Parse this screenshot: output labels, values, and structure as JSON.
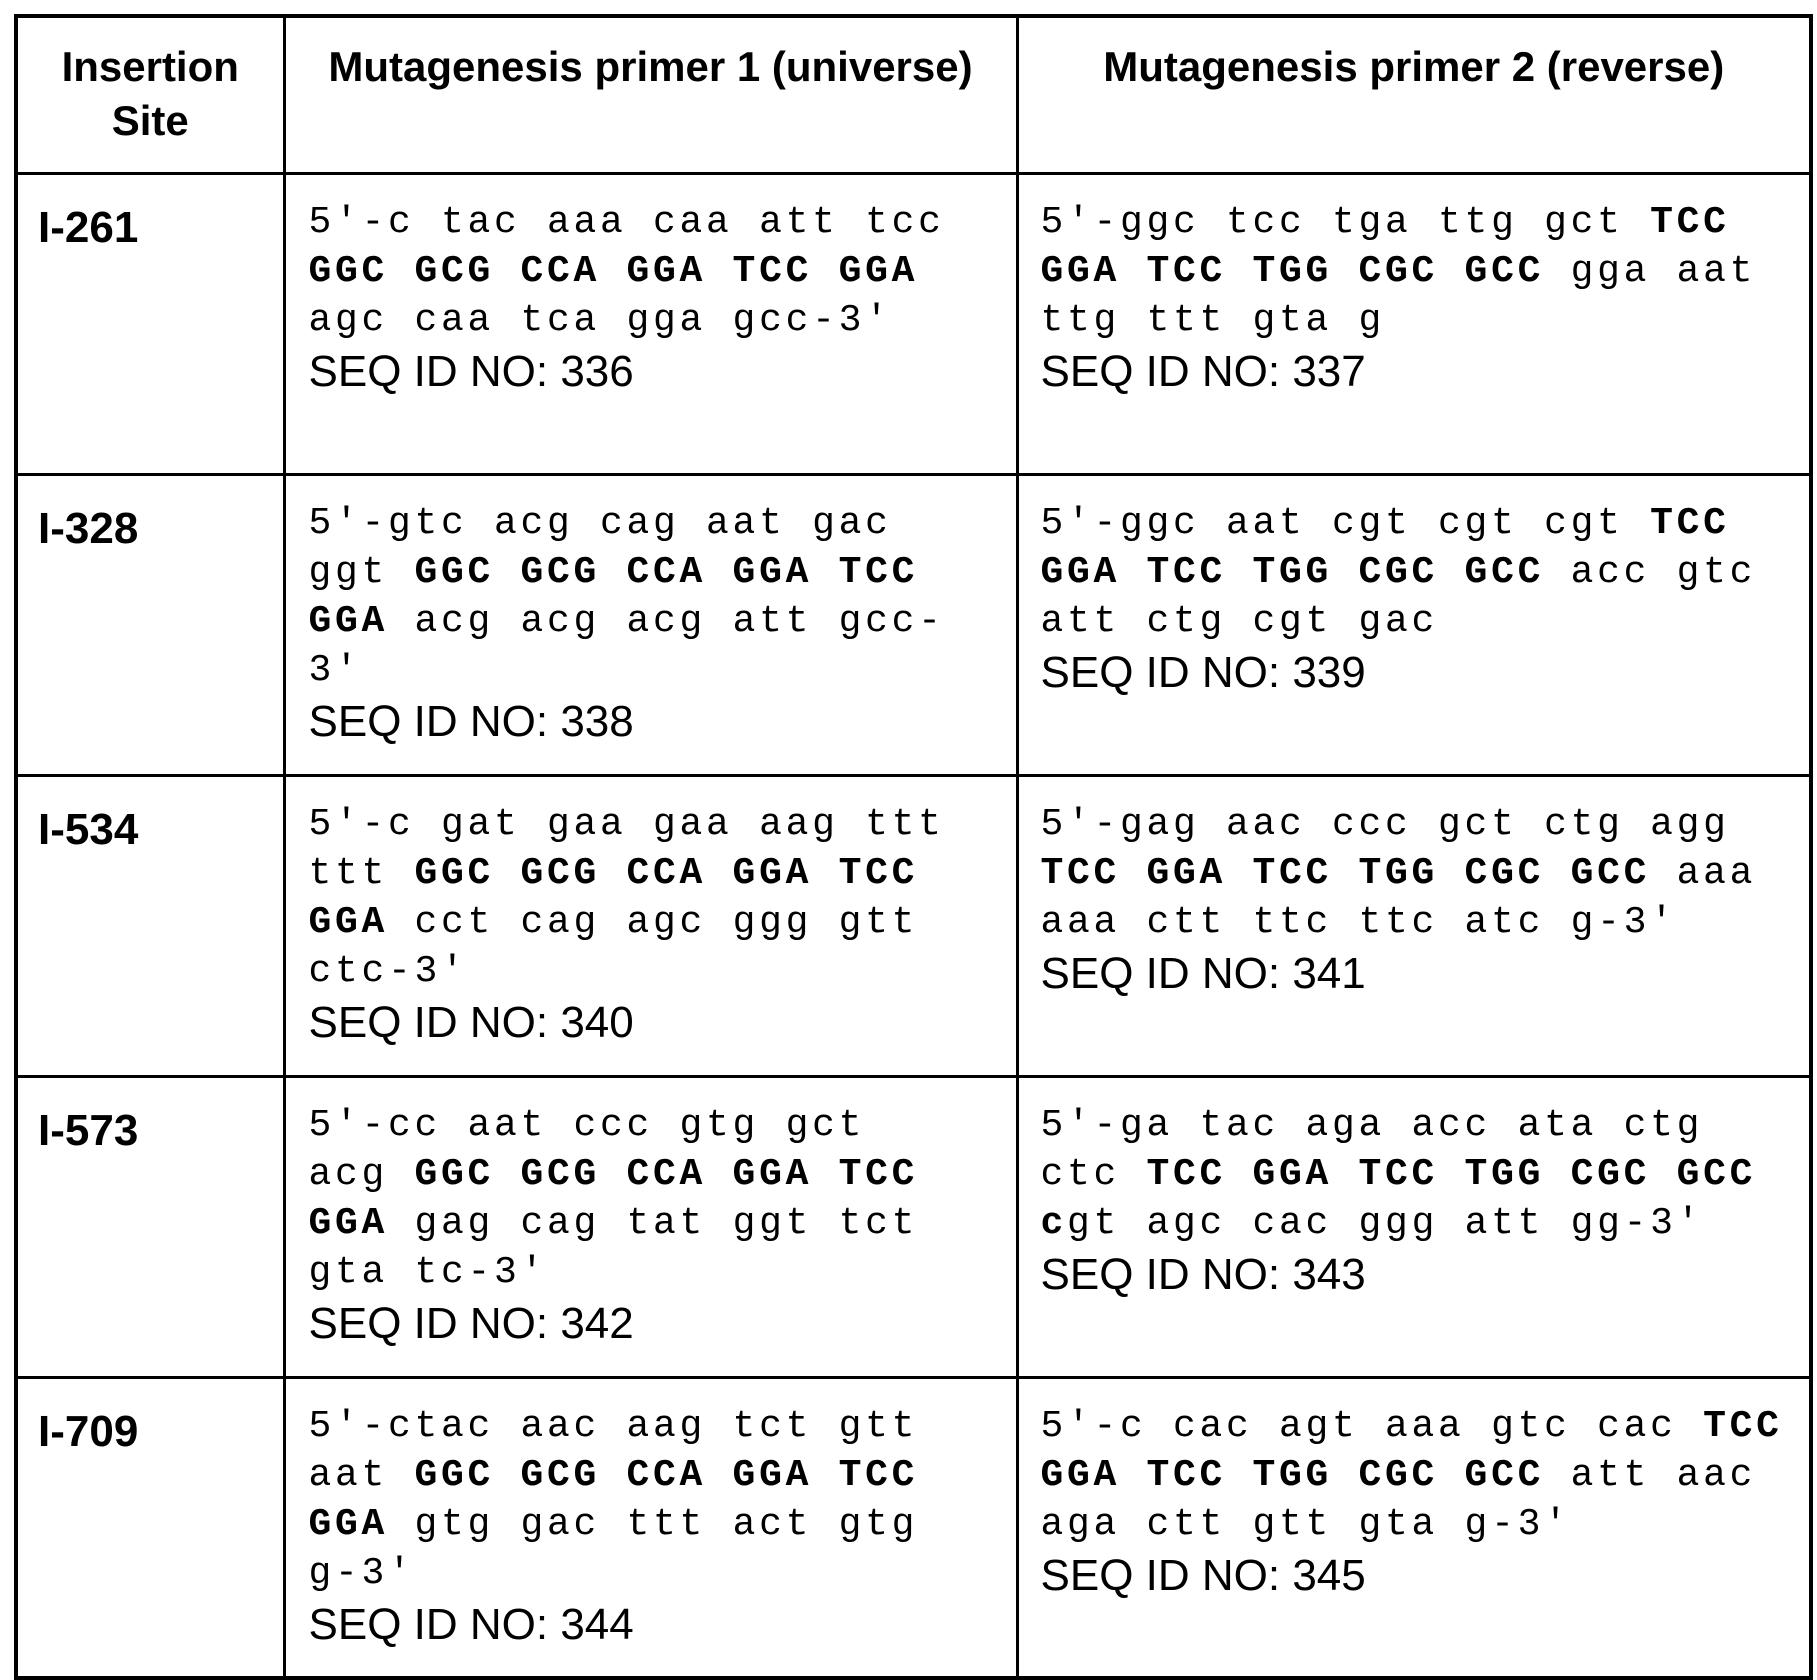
{
  "table": {
    "header": [
      "Insertion Site",
      "Mutagenesis primer 1 (universe)",
      "Mutagenesis primer 2 (reverse)"
    ],
    "rows": [
      {
        "site": "I-261",
        "primer1": {
          "sequence": [
            {
              "text": "5′-c tac aaa caa att tcc ",
              "bold": false
            },
            {
              "text": "GGC GCG CCA GGA TCC GGA",
              "bold": true
            },
            {
              "text": " agc caa tca gga gcc-3′",
              "bold": false
            }
          ],
          "seq_id": "SEQ ID NO: 336"
        },
        "primer2": {
          "sequence": [
            {
              "text": "5′-ggc tcc tga ttg gct ",
              "bold": false
            },
            {
              "text": "TCC GGA TCC TGG CGC GCC",
              "bold": true
            },
            {
              "text": " gga aat ttg ttt gta g",
              "bold": false
            }
          ],
          "seq_id": "SEQ ID NO: 337"
        }
      },
      {
        "site": "I-328",
        "primer1": {
          "sequence": [
            {
              "text": "5′-gtc acg cag aat gac ggt ",
              "bold": false
            },
            {
              "text": "GGC GCG CCA GGA TCC GGA",
              "bold": true
            },
            {
              "text": " acg acg acg att gcc-3′",
              "bold": false
            }
          ],
          "seq_id": "SEQ ID NO: 338"
        },
        "primer2": {
          "sequence": [
            {
              "text": "5′-ggc aat cgt cgt cgt ",
              "bold": false
            },
            {
              "text": "TCC GGA TCC TGG CGC GCC",
              "bold": true
            },
            {
              "text": " acc gtc att ctg cgt gac",
              "bold": false
            }
          ],
          "seq_id": "SEQ ID NO: 339"
        }
      },
      {
        "site": "I-534",
        "primer1": {
          "sequence": [
            {
              "text": "5′-c gat gaa gaa aag ttt ttt ",
              "bold": false
            },
            {
              "text": "GGC GCG CCA GGA TCC GGA",
              "bold": true
            },
            {
              "text": " cct cag agc ggg gtt ctc-3′",
              "bold": false
            }
          ],
          "seq_id": "SEQ ID NO: 340"
        },
        "primer2": {
          "sequence": [
            {
              "text": "5′-gag aac ccc gct ctg agg ",
              "bold": false
            },
            {
              "text": "TCC GGA TCC TGG CGC GCC",
              "bold": true
            },
            {
              "text": " aaa aaa ctt ttc ttc atc g-3′",
              "bold": false
            }
          ],
          "seq_id": "SEQ ID NO: 341"
        }
      },
      {
        "site": "I-573",
        "primer1": {
          "sequence": [
            {
              "text": "5′-cc aat ccc gtg gct acg ",
              "bold": false
            },
            {
              "text": "GGC GCG CCA GGA TCC GGA",
              "bold": true
            },
            {
              "text": " gag cag tat ggt tct gta tc-3′",
              "bold": false
            }
          ],
          "seq_id": "SEQ ID NO: 342"
        },
        "primer2": {
          "sequence": [
            {
              "text": "5′-ga tac aga acc ata ctg ctc ",
              "bold": false
            },
            {
              "text": "TCC GGA TCC TGG CGC GCC c",
              "bold": true
            },
            {
              "text": "gt agc cac ggg att gg-3′",
              "bold": false
            }
          ],
          "seq_id": "SEQ ID NO: 343"
        }
      },
      {
        "site": "I-709",
        "primer1": {
          "sequence": [
            {
              "text": "5′-ctac aac aag tct gtt aat ",
              "bold": false
            },
            {
              "text": "GGC GCG CCA GGA TCC GGA",
              "bold": true
            },
            {
              "text": " gtg gac ttt act gtg g-3′",
              "bold": false
            }
          ],
          "seq_id": "SEQ ID NO: 344"
        },
        "primer2": {
          "sequence": [
            {
              "text": "5′-c cac agt aaa gtc cac ",
              "bold": false
            },
            {
              "text": "TCC GGA TCC TGG CGC GCC",
              "bold": true
            },
            {
              "text": " att aac aga ctt gtt gta g-3′",
              "bold": false
            }
          ],
          "seq_id": "SEQ ID NO: 345"
        }
      }
    ]
  }
}
